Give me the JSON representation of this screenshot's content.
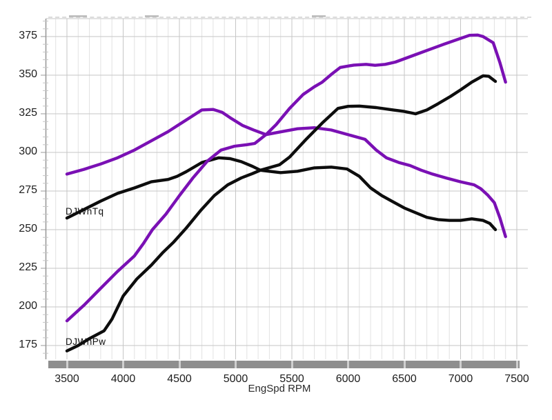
{
  "labels": {
    "torque": "DJWhTq",
    "power": "DJWhPw"
  },
  "colors": {
    "purple": "#7a10b4",
    "black": "#0d0d0d",
    "grid_minor": "#e2e2e2",
    "grid_major": "#c6c6c6",
    "axis": "#9a9a9a",
    "tick_minor": "#c4c4c4",
    "bar": "#8e8e8e",
    "bar_gap": "#cfcfcf",
    "tick_text": "#1d1d1d"
  },
  "chart_data": {
    "type": "line",
    "title": "",
    "xlabel": "EngSpd  RPM",
    "ylabel": "",
    "x_ticks": [
      3500,
      4000,
      4500,
      5000,
      5500,
      6000,
      6500,
      7000,
      7500
    ],
    "y_ticks": [
      375,
      350,
      325,
      300,
      275,
      250,
      225,
      200,
      175
    ],
    "xlim": [
      3320,
      7600
    ],
    "ylim": [
      167,
      386
    ],
    "grid": true,
    "legend_position": "none",
    "series": [
      {
        "name": "purple-run-torque",
        "color": "#7a10b4",
        "points": [
          [
            3500,
            286
          ],
          [
            3650,
            289
          ],
          [
            3800,
            292.5
          ],
          [
            3950,
            296.5
          ],
          [
            4100,
            301.5
          ],
          [
            4250,
            307.5
          ],
          [
            4400,
            313.5
          ],
          [
            4550,
            320.5
          ],
          [
            4700,
            327.5
          ],
          [
            4800,
            327.8
          ],
          [
            4880,
            326
          ],
          [
            4950,
            322.5
          ],
          [
            5060,
            317.5
          ],
          [
            5160,
            314.5
          ],
          [
            5270,
            311.5
          ],
          [
            5400,
            313.3
          ],
          [
            5550,
            315.3
          ],
          [
            5700,
            316
          ],
          [
            5850,
            314.5
          ],
          [
            5950,
            312.5
          ],
          [
            6050,
            310.5
          ],
          [
            6150,
            308.5
          ],
          [
            6250,
            301.5
          ],
          [
            6340,
            296.5
          ],
          [
            6450,
            293.5
          ],
          [
            6550,
            291.5
          ],
          [
            6650,
            288.5
          ],
          [
            6750,
            286
          ],
          [
            6870,
            283.5
          ],
          [
            7000,
            281
          ],
          [
            7120,
            279
          ],
          [
            7180,
            276.5
          ],
          [
            7240,
            272.5
          ],
          [
            7300,
            267.5
          ],
          [
            7350,
            257.5
          ],
          [
            7400,
            245.5
          ]
        ]
      },
      {
        "name": "black-run-torque",
        "color": "#0d0d0d",
        "points": [
          [
            3500,
            257.5
          ],
          [
            3650,
            263
          ],
          [
            3800,
            268.5
          ],
          [
            3950,
            273.5
          ],
          [
            4100,
            277
          ],
          [
            4250,
            281
          ],
          [
            4400,
            282.5
          ],
          [
            4480,
            284.5
          ],
          [
            4560,
            287.5
          ],
          [
            4700,
            293.5
          ],
          [
            4850,
            296.5
          ],
          [
            4950,
            296
          ],
          [
            5050,
            294
          ],
          [
            5150,
            291
          ],
          [
            5220,
            288.5
          ],
          [
            5400,
            286.9
          ],
          [
            5550,
            287.8
          ],
          [
            5700,
            290
          ],
          [
            5850,
            290.5
          ],
          [
            5990,
            289.3
          ],
          [
            6100,
            284.5
          ],
          [
            6200,
            277
          ],
          [
            6300,
            272
          ],
          [
            6400,
            268
          ],
          [
            6500,
            264
          ],
          [
            6600,
            261
          ],
          [
            6700,
            258
          ],
          [
            6800,
            256.5
          ],
          [
            6900,
            256
          ],
          [
            7000,
            256
          ],
          [
            7100,
            257
          ],
          [
            7200,
            256
          ],
          [
            7260,
            254
          ],
          [
            7310,
            250
          ]
        ]
      },
      {
        "name": "purple-run-power",
        "color": "#7a10b4",
        "points": [
          [
            3500,
            191
          ],
          [
            3650,
            201
          ],
          [
            3800,
            212
          ],
          [
            3950,
            223
          ],
          [
            4100,
            233
          ],
          [
            4180,
            241
          ],
          [
            4260,
            250
          ],
          [
            4380,
            260
          ],
          [
            4500,
            272
          ],
          [
            4620,
            283.5
          ],
          [
            4750,
            294.5
          ],
          [
            4870,
            301.5
          ],
          [
            4990,
            304
          ],
          [
            5100,
            305
          ],
          [
            5170,
            305.8
          ],
          [
            5270,
            311.5
          ],
          [
            5360,
            318
          ],
          [
            5480,
            328.5
          ],
          [
            5600,
            337.5
          ],
          [
            5700,
            342.5
          ],
          [
            5770,
            345.5
          ],
          [
            5850,
            350.5
          ],
          [
            5930,
            355
          ],
          [
            6050,
            356.5
          ],
          [
            6160,
            357
          ],
          [
            6240,
            356.4
          ],
          [
            6330,
            357
          ],
          [
            6420,
            358.5
          ],
          [
            6570,
            362.5
          ],
          [
            6700,
            366
          ],
          [
            6850,
            370
          ],
          [
            7000,
            373.8
          ],
          [
            7080,
            375.8
          ],
          [
            7150,
            376
          ],
          [
            7200,
            375
          ],
          [
            7290,
            371
          ],
          [
            7350,
            358
          ],
          [
            7400,
            345.5
          ]
        ]
      },
      {
        "name": "black-run-power",
        "color": "#0d0d0d",
        "points": [
          [
            3500,
            171.5
          ],
          [
            3600,
            175
          ],
          [
            3700,
            179.5
          ],
          [
            3830,
            184.5
          ],
          [
            3900,
            192
          ],
          [
            4000,
            207
          ],
          [
            4120,
            218
          ],
          [
            4250,
            227
          ],
          [
            4350,
            235
          ],
          [
            4450,
            242
          ],
          [
            4560,
            251
          ],
          [
            4690,
            262.5
          ],
          [
            4810,
            272
          ],
          [
            4930,
            279
          ],
          [
            5050,
            283.5
          ],
          [
            5150,
            286.3
          ],
          [
            5220,
            288.5
          ],
          [
            5390,
            292
          ],
          [
            5480,
            297
          ],
          [
            5620,
            308
          ],
          [
            5770,
            319
          ],
          [
            5910,
            328.5
          ],
          [
            6000,
            329.8
          ],
          [
            6100,
            330
          ],
          [
            6250,
            329
          ],
          [
            6400,
            327.5
          ],
          [
            6500,
            326.5
          ],
          [
            6600,
            325
          ],
          [
            6700,
            327.5
          ],
          [
            6800,
            331.5
          ],
          [
            6910,
            336.2
          ],
          [
            7000,
            340.5
          ],
          [
            7100,
            345.5
          ],
          [
            7200,
            349.6
          ],
          [
            7250,
            349.3
          ],
          [
            7310,
            346
          ]
        ]
      }
    ]
  }
}
